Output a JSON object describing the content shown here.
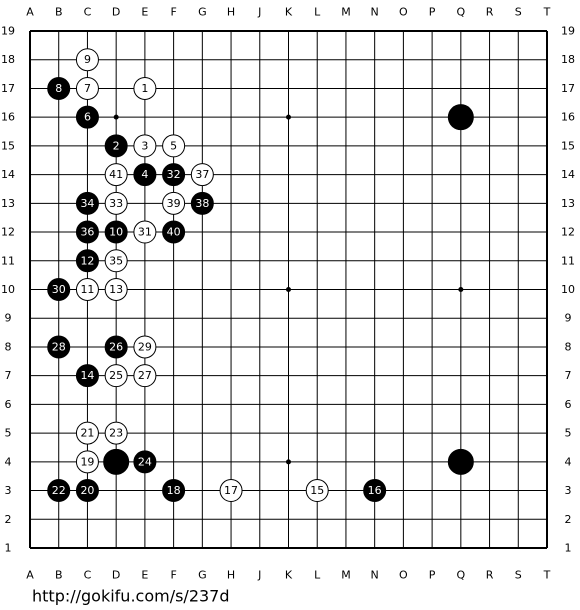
{
  "board": {
    "columns": [
      "A",
      "B",
      "C",
      "D",
      "E",
      "F",
      "G",
      "H",
      "J",
      "K",
      "L",
      "M",
      "N",
      "O",
      "P",
      "Q",
      "R",
      "S",
      "T"
    ],
    "rows": [
      19,
      18,
      17,
      16,
      15,
      14,
      13,
      12,
      11,
      10,
      9,
      8,
      7,
      6,
      5,
      4,
      3,
      2,
      1
    ],
    "stones": [
      {
        "col": "Q",
        "row": 16,
        "color": "black"
      },
      {
        "col": "Q",
        "row": 4,
        "color": "black"
      },
      {
        "col": "D",
        "row": 4,
        "color": "black"
      },
      {
        "col": "E",
        "row": 17,
        "color": "white",
        "label": 1
      },
      {
        "col": "D",
        "row": 15,
        "color": "black",
        "label": 2
      },
      {
        "col": "E",
        "row": 15,
        "color": "white",
        "label": 3
      },
      {
        "col": "E",
        "row": 14,
        "color": "black",
        "label": 4
      },
      {
        "col": "F",
        "row": 15,
        "color": "white",
        "label": 5
      },
      {
        "col": "C",
        "row": 16,
        "color": "black",
        "label": 6
      },
      {
        "col": "C",
        "row": 17,
        "color": "white",
        "label": 7
      },
      {
        "col": "B",
        "row": 17,
        "color": "black",
        "label": 8
      },
      {
        "col": "C",
        "row": 18,
        "color": "white",
        "label": 9
      },
      {
        "col": "D",
        "row": 12,
        "color": "black",
        "label": 10
      },
      {
        "col": "C",
        "row": 10,
        "color": "white",
        "label": 11
      },
      {
        "col": "C",
        "row": 11,
        "color": "black",
        "label": 12
      },
      {
        "col": "D",
        "row": 10,
        "color": "white",
        "label": 13
      },
      {
        "col": "C",
        "row": 7,
        "color": "black",
        "label": 14
      },
      {
        "col": "L",
        "row": 3,
        "color": "white",
        "label": 15
      },
      {
        "col": "N",
        "row": 3,
        "color": "black",
        "label": 16
      },
      {
        "col": "H",
        "row": 3,
        "color": "white",
        "label": 17
      },
      {
        "col": "F",
        "row": 3,
        "color": "black",
        "label": 18
      },
      {
        "col": "C",
        "row": 4,
        "color": "white",
        "label": 19
      },
      {
        "col": "C",
        "row": 3,
        "color": "black",
        "label": 20
      },
      {
        "col": "C",
        "row": 5,
        "color": "white",
        "label": 21
      },
      {
        "col": "B",
        "row": 3,
        "color": "black",
        "label": 22
      },
      {
        "col": "D",
        "row": 5,
        "color": "white",
        "label": 23
      },
      {
        "col": "E",
        "row": 4,
        "color": "black",
        "label": 24
      },
      {
        "col": "D",
        "row": 7,
        "color": "white",
        "label": 25
      },
      {
        "col": "D",
        "row": 8,
        "color": "black",
        "label": 26
      },
      {
        "col": "E",
        "row": 7,
        "color": "white",
        "label": 27
      },
      {
        "col": "B",
        "row": 8,
        "color": "black",
        "label": 28
      },
      {
        "col": "E",
        "row": 8,
        "color": "white",
        "label": 29
      },
      {
        "col": "B",
        "row": 10,
        "color": "black",
        "label": 30
      },
      {
        "col": "E",
        "row": 12,
        "color": "white",
        "label": 31
      },
      {
        "col": "F",
        "row": 14,
        "color": "black",
        "label": 32
      },
      {
        "col": "D",
        "row": 13,
        "color": "white",
        "label": 33
      },
      {
        "col": "C",
        "row": 13,
        "color": "black",
        "label": 34
      },
      {
        "col": "D",
        "row": 11,
        "color": "white",
        "label": 35
      },
      {
        "col": "C",
        "row": 12,
        "color": "black",
        "label": 36
      },
      {
        "col": "G",
        "row": 14,
        "color": "white",
        "label": 37
      },
      {
        "col": "G",
        "row": 13,
        "color": "black",
        "label": 38
      },
      {
        "col": "F",
        "row": 13,
        "color": "white",
        "label": 39
      },
      {
        "col": "F",
        "row": 12,
        "color": "black",
        "label": 40
      },
      {
        "col": "D",
        "row": 14,
        "color": "white",
        "label": 41
      }
    ]
  },
  "footer": {
    "url": "http://gokifu.com/s/237d"
  }
}
